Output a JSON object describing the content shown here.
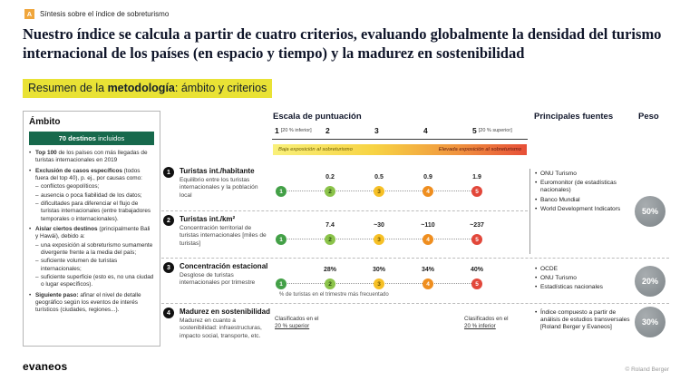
{
  "header": {
    "tag_letter": "A",
    "tag_title": "Síntesis sobre el índice de sobreturismo",
    "title": "Nuestro índice se calcula a partir de cuatro criterios, evaluando globalmente la densidad del turismo internacional de los países (en espacio y tiempo) y la madurez en sostenibilidad",
    "subtitle_pre": "Resumen de la ",
    "subtitle_bold": "metodología",
    "subtitle_post": ": ámbito y criterios"
  },
  "scope": {
    "title": "Ámbito",
    "badge_bold": "70 destinos",
    "badge_rest": " incluidos",
    "bullets": [
      {
        "lead": "Top 100",
        "text": " de los países con más llegadas de turistas internacionales en 2019",
        "subs": []
      },
      {
        "lead": "Exclusión de casos específicos",
        "text": " (todos fuera del top 40), p. ej., por causas como:",
        "subs": [
          "conflictos geopolíticos;",
          "ausencia o poca fiabilidad de los datos;",
          "dificultades para diferenciar el flujo de turistas internacionales (entre trabajadores temporales o internacionales)."
        ]
      },
      {
        "lead": "Aislar ciertos destinos",
        "text": " (principalmente Bali y Hawái), debido a:",
        "subs": [
          "una exposición al sobreturismo sumamente divergente frente a la media del país;",
          "suficiente volumen de turistas internacionales;",
          "suficiente superficie (esto es, no una ciudad o lugar específicos)."
        ]
      },
      {
        "lead": "Siguiente paso:",
        "text": " afinar el nivel de detalle geográfico según los eventos de interés turísticos (ciudades, regiones...).",
        "subs": []
      }
    ]
  },
  "scale": {
    "title": "Escala de puntuación",
    "ticks": [
      {
        "num": "1",
        "note": "[20 % inferior]"
      },
      {
        "num": "2",
        "note": ""
      },
      {
        "num": "3",
        "note": ""
      },
      {
        "num": "4",
        "note": ""
      },
      {
        "num": "5",
        "note": "[20 % superior]"
      }
    ],
    "band_left": "Baja exposición al sobreturismo",
    "band_right": "Elevada exposición al sobreturismo"
  },
  "criteria": [
    {
      "num": "1",
      "title": "Turistas int./habitante",
      "desc": "Equilibrio entre los turistas internacionales y la población local",
      "values": [
        "0.2",
        "0.5",
        "0.9",
        "1.9"
      ]
    },
    {
      "num": "2",
      "title": "Turistas int./km²",
      "desc": "Concentración territorial de turistas internacionales [miles de turistas]",
      "values": [
        "7.4",
        "~30",
        "~110",
        "~237"
      ]
    },
    {
      "num": "3",
      "title": "Concentración estacional",
      "desc": "Desglose de turistas internacionales por trimestre",
      "values": [
        "28%",
        "30%",
        "34%",
        "40%"
      ],
      "footnote": "% de turistas en el trimestre más frecuentado"
    },
    {
      "num": "4",
      "title": "Madurez en sostenibilidad",
      "desc": "Madurez en cuanto a sostenibilidad: infraestructuras, impacto social, transporte, etc.",
      "left_pre": "Clasificados en el",
      "left_val": "20 % superior",
      "right_pre": "Clasificados en el",
      "right_val": "20 % inferior"
    }
  ],
  "sources": {
    "title": "Principales fuentes",
    "groups": [
      {
        "items": [
          "ONU Turismo",
          "Euromonitor (de estadísticas nacionales)",
          "Banco Mundial",
          "World Development Indicators"
        ],
        "weight": "50%"
      },
      {
        "items": [
          "OCDE",
          "ONU Turismo",
          "Estadísticas nacionales"
        ],
        "weight": "20%"
      },
      {
        "items": [
          "Índice compuesto a partir de análisis de estudios transversales [Roland Berger y Evaneos]"
        ],
        "weight": "30%"
      }
    ]
  },
  "peso_title": "Peso",
  "footer": {
    "brand": "evaneos",
    "copyright": "© Roland Berger"
  },
  "colors": {
    "highlight_yellow": "#e9e235",
    "tag_orange": "#f0a63c",
    "badge_green": "#17694c",
    "scale_dot_colors": [
      "#43a047",
      "#8bc34a",
      "#f6c026",
      "#ef8e1f",
      "#e2473a"
    ],
    "weight_circle_gray": "#8f9496",
    "band_gradient": [
      "#f9f07a",
      "#e74f38"
    ]
  }
}
